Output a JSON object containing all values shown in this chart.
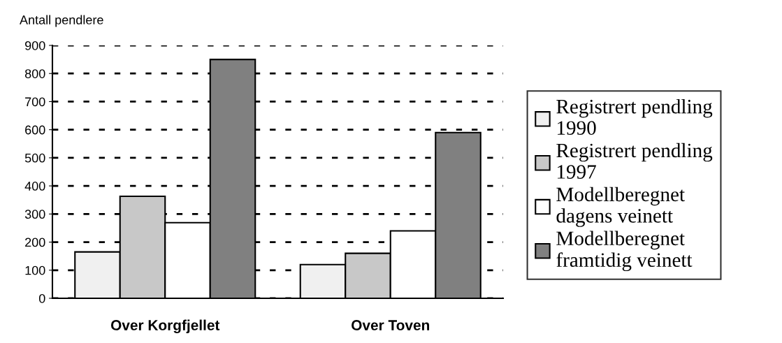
{
  "chart_data": {
    "type": "bar",
    "ylabel": "Antall pendlere",
    "categories": [
      "Over Korgfjellet",
      "Over Toven"
    ],
    "series": [
      {
        "name": "Registrert pendling\n1990",
        "color": "#f0f0f0",
        "values": [
          165,
          120
        ]
      },
      {
        "name": "Registrert pendling\n1997",
        "color": "#c8c8c8",
        "values": [
          363,
          160
        ]
      },
      {
        "name": "Modellberegnet\ndagens veinett",
        "color": "#ffffff",
        "values": [
          269,
          240
        ]
      },
      {
        "name": "Modellberegnet\nframtidig veinett",
        "color": "#808080",
        "values": [
          850,
          590
        ]
      }
    ],
    "ylim": [
      0,
      900
    ],
    "yticks": [
      0,
      100,
      200,
      300,
      400,
      500,
      600,
      700,
      800,
      900
    ],
    "grid": "y",
    "legend": "right"
  }
}
